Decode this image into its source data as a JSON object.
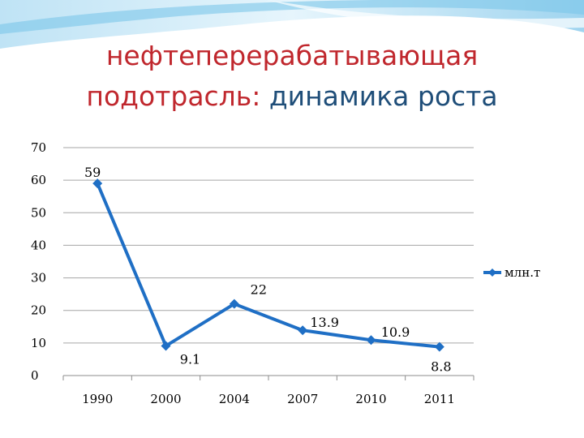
{
  "title": {
    "line1": "нефтеперерабатывающая",
    "line2_part1": "подотрасль: ",
    "line2_part2": "динамика роста"
  },
  "colors": {
    "series": "#1f6fc5",
    "title_red": "#c0272d",
    "title_blue": "#1f4e79",
    "gridline": "#a6a6a6"
  },
  "chart_data": {
    "type": "line",
    "categories": [
      "1990",
      "2000",
      "2004",
      "2007",
      "2010",
      "2011"
    ],
    "series": [
      {
        "name": "млн.т",
        "values": [
          59,
          9.1,
          22,
          13.9,
          10.9,
          8.8
        ]
      }
    ],
    "data_labels": [
      "59",
      "9.1",
      "22",
      "13.9",
      "10.9",
      "8.8"
    ],
    "ylim": [
      0,
      70
    ],
    "yticks": [
      0,
      10,
      20,
      30,
      40,
      50,
      60,
      70
    ],
    "grid": true,
    "legend_position": "right",
    "xlabel": "",
    "ylabel": ""
  }
}
